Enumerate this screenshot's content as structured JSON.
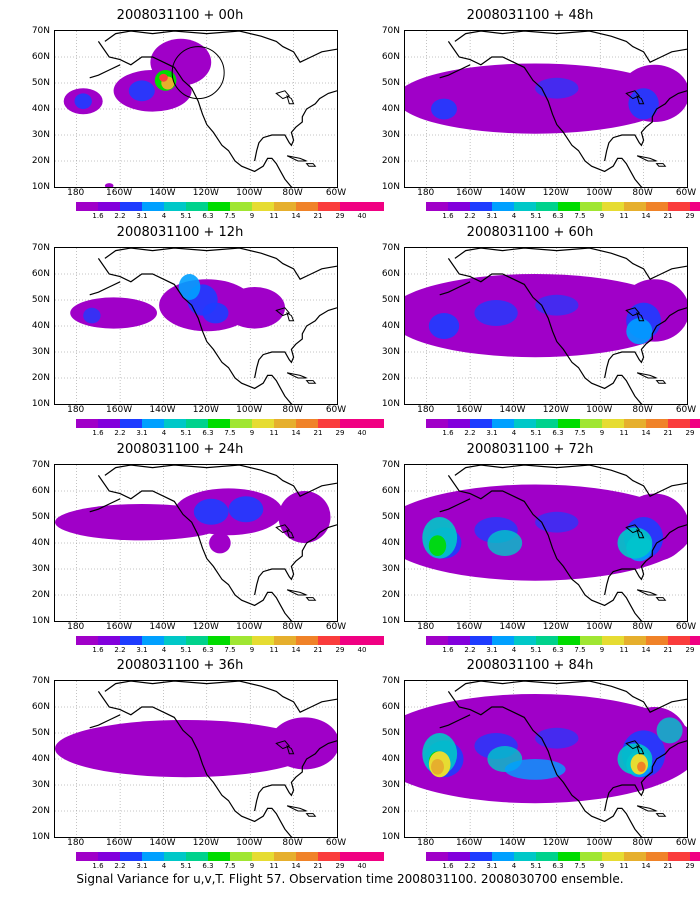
{
  "panels": [
    {
      "title": "2008031100 + 00h",
      "level": 0
    },
    {
      "title": "2008031100 + 12h",
      "level": 1
    },
    {
      "title": "2008031100 + 24h",
      "level": 2
    },
    {
      "title": "2008031100 + 36h",
      "level": 3
    },
    {
      "title": "2008031100 + 48h",
      "level": 4
    },
    {
      "title": "2008031100 + 60h",
      "level": 5
    },
    {
      "title": "2008031100 + 72h",
      "level": 6
    },
    {
      "title": "2008031100 + 84h",
      "level": 7
    }
  ],
  "y_ticks": [
    "70N",
    "60N",
    "50N",
    "40N",
    "30N",
    "20N",
    "10N"
  ],
  "x_ticks": [
    "180",
    "160W",
    "140W",
    "120W",
    "100W",
    "80W",
    "60W"
  ],
  "colorbar": {
    "labels": [
      "1.6",
      "2.2",
      "3.1",
      "4",
      "5.1",
      "6.3",
      "7.5",
      "9",
      "11",
      "14",
      "21",
      "29",
      "40"
    ],
    "colors": [
      "#a000c8",
      "#8200dc",
      "#1e3cff",
      "#00a0ff",
      "#00c8c8",
      "#00d28c",
      "#00dc00",
      "#a0e632",
      "#e6dc32",
      "#e6af2d",
      "#f08228",
      "#fa3c3c",
      "#f00082"
    ]
  },
  "caption": "Signal Variance for u,v,T. Flight 57. Observation time 2008031100. 2008030700 ensemble."
}
